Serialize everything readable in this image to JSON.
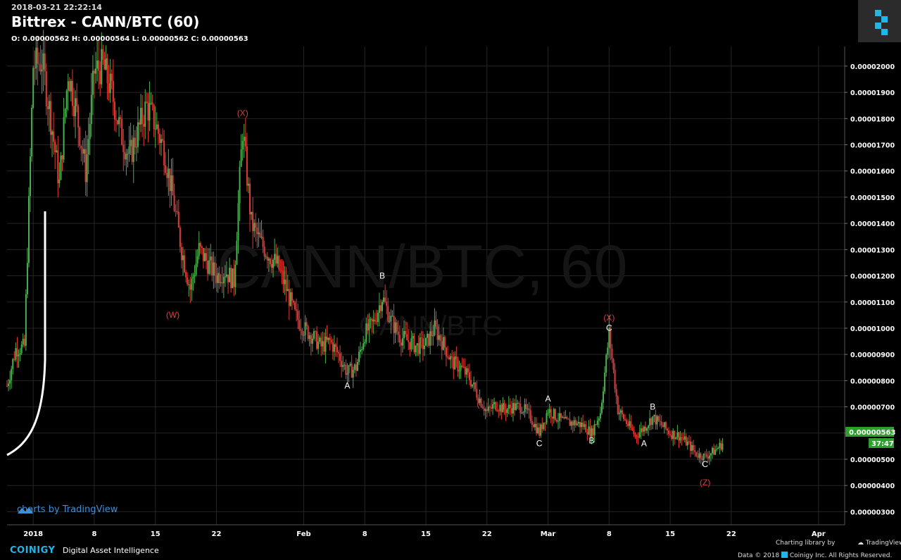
{
  "header": {
    "timestamp": "2018-03-21 22:22:14",
    "title": "Bittrex - CANN/BTC (60)",
    "ohlc": "O: 0.00000562 H: 0.00000564 L: 0.00000562 C: 0.00000563"
  },
  "watermark": {
    "main": "CANN/BTC, 60",
    "sub": "CANN/BTC"
  },
  "tradingview_credit": "charts by TradingView",
  "footer": {
    "brand": "COINIGY",
    "tagline": "Digital Asset Intelligence",
    "charting_library": "Charting library by",
    "tradingview": "TradingView",
    "copyright": "Data © 2018",
    "copyright_rest": "Coinigy Inc. All Rights Reserved."
  },
  "price_badge": {
    "value": "0.00000563",
    "countdown": "37:47"
  },
  "colors": {
    "up": "#4caf50",
    "down": "#e53935",
    "badge": "#2e9e2e",
    "wave_red": "#d9413a",
    "wave_white": "#ffffff",
    "grid": "#262626"
  },
  "chart_data": {
    "type": "candlestick",
    "title": "Bittrex - CANN/BTC (60)",
    "x_axis_labels": [
      "2018",
      "8",
      "15",
      "22",
      "Feb",
      "8",
      "15",
      "22",
      "Mar",
      "8",
      "15",
      "22",
      "Apr"
    ],
    "x_axis_dates": [
      "2018-01-01",
      "2018-01-08",
      "2018-01-15",
      "2018-01-22",
      "2018-02-01",
      "2018-02-08",
      "2018-02-15",
      "2018-02-22",
      "2018-03-01",
      "2018-03-08",
      "2018-03-15",
      "2018-03-22",
      "2018-04-01"
    ],
    "y_axis_labels": [
      "0.00002000",
      "0.00001900",
      "0.00001800",
      "0.00001700",
      "0.00001600",
      "0.00001500",
      "0.00001400",
      "0.00001300",
      "0.00001200",
      "0.00001100",
      "0.00001000",
      "0.00000900",
      "0.00000800",
      "0.00000700",
      "0.00000600",
      "0.00000500",
      "0.00000400",
      "0.00000300"
    ],
    "y_axis_values": [
      2e-05,
      1.9e-05,
      1.8e-05,
      1.7e-05,
      1.6e-05,
      1.5e-05,
      1.4e-05,
      1.3e-05,
      1.2e-05,
      1.1e-05,
      1e-05,
      9e-06,
      8e-06,
      7e-06,
      6e-06,
      5e-06,
      4e-06,
      3e-06
    ],
    "xlim": [
      "2017-12-29",
      "2018-04-04"
    ],
    "ylim": [
      2.5e-06,
      2.075e-05
    ],
    "price_path": [
      {
        "date": "2017-12-29",
        "price": 7.8e-06
      },
      {
        "date": "2017-12-30",
        "price": 9.2e-06
      },
      {
        "date": "2017-12-31",
        "price": 9.3e-06
      },
      {
        "date": "2018-01-01",
        "price": 2e-05
      },
      {
        "date": "2018-01-02",
        "price": 2.02e-05
      },
      {
        "date": "2018-01-03",
        "price": 1.8e-05
      },
      {
        "date": "2018-01-04",
        "price": 1.55e-05
      },
      {
        "date": "2018-01-05",
        "price": 1.98e-05
      },
      {
        "date": "2018-01-06",
        "price": 1.82e-05
      },
      {
        "date": "2018-01-07",
        "price": 1.6e-05
      },
      {
        "date": "2018-01-08",
        "price": 1.98e-05
      },
      {
        "date": "2018-01-09",
        "price": 2e-05
      },
      {
        "date": "2018-01-10",
        "price": 1.9e-05
      },
      {
        "date": "2018-01-11",
        "price": 1.75e-05
      },
      {
        "date": "2018-01-12",
        "price": 1.65e-05
      },
      {
        "date": "2018-01-13",
        "price": 1.75e-05
      },
      {
        "date": "2018-01-14",
        "price": 1.85e-05
      },
      {
        "date": "2018-01-15",
        "price": 1.78e-05
      },
      {
        "date": "2018-01-16",
        "price": 1.68e-05
      },
      {
        "date": "2018-01-17",
        "price": 1.5e-05
      },
      {
        "date": "2018-01-18",
        "price": 1.3e-05
      },
      {
        "date": "2018-01-19",
        "price": 1.15e-05
      },
      {
        "date": "2018-01-20",
        "price": 1.3e-05
      },
      {
        "date": "2018-01-21",
        "price": 1.25e-05
      },
      {
        "date": "2018-01-22",
        "price": 1.2e-05
      },
      {
        "date": "2018-01-23",
        "price": 1.22e-05
      },
      {
        "date": "2018-01-24",
        "price": 1.18e-05
      },
      {
        "date": "2018-01-25",
        "price": 1.76e-05
      },
      {
        "date": "2018-01-26",
        "price": 1.4e-05
      },
      {
        "date": "2018-01-27",
        "price": 1.33e-05
      },
      {
        "date": "2018-01-28",
        "price": 1.28e-05
      },
      {
        "date": "2018-01-29",
        "price": 1.24e-05
      },
      {
        "date": "2018-01-30",
        "price": 1.15e-05
      },
      {
        "date": "2018-01-31",
        "price": 1.05e-05
      },
      {
        "date": "2018-02-01",
        "price": 1e-05
      },
      {
        "date": "2018-02-02",
        "price": 9.7e-06
      },
      {
        "date": "2018-02-03",
        "price": 9.3e-06
      },
      {
        "date": "2018-02-04",
        "price": 9.5e-06
      },
      {
        "date": "2018-02-05",
        "price": 9e-06
      },
      {
        "date": "2018-02-06",
        "price": 8.3e-06
      },
      {
        "date": "2018-02-07",
        "price": 8.5e-06
      },
      {
        "date": "2018-02-08",
        "price": 9.8e-06
      },
      {
        "date": "2018-02-09",
        "price": 1.02e-05
      },
      {
        "date": "2018-02-10",
        "price": 1.12e-05
      },
      {
        "date": "2018-02-11",
        "price": 1.03e-05
      },
      {
        "date": "2018-02-12",
        "price": 9.7e-06
      },
      {
        "date": "2018-02-13",
        "price": 9.5e-06
      },
      {
        "date": "2018-02-14",
        "price": 9.3e-06
      },
      {
        "date": "2018-02-15",
        "price": 9.4e-06
      },
      {
        "date": "2018-02-16",
        "price": 1e-05
      },
      {
        "date": "2018-02-17",
        "price": 9.4e-06
      },
      {
        "date": "2018-02-18",
        "price": 8.7e-06
      },
      {
        "date": "2018-02-19",
        "price": 8.5e-06
      },
      {
        "date": "2018-02-20",
        "price": 8.1e-06
      },
      {
        "date": "2018-02-21",
        "price": 7.4e-06
      },
      {
        "date": "2018-02-22",
        "price": 6.8e-06
      },
      {
        "date": "2018-02-23",
        "price": 7.1e-06
      },
      {
        "date": "2018-02-24",
        "price": 6.9e-06
      },
      {
        "date": "2018-02-25",
        "price": 7e-06
      },
      {
        "date": "2018-02-26",
        "price": 7e-06
      },
      {
        "date": "2018-02-27",
        "price": 6.6e-06
      },
      {
        "date": "2018-02-28",
        "price": 6e-06
      },
      {
        "date": "2018-03-01",
        "price": 6.9e-06
      },
      {
        "date": "2018-03-02",
        "price": 6.6e-06
      },
      {
        "date": "2018-03-03",
        "price": 6.4e-06
      },
      {
        "date": "2018-03-04",
        "price": 6.4e-06
      },
      {
        "date": "2018-03-05",
        "price": 6.3e-06
      },
      {
        "date": "2018-03-06",
        "price": 6e-06
      },
      {
        "date": "2018-03-07",
        "price": 6.8e-06
      },
      {
        "date": "2018-03-08",
        "price": 9.8e-06
      },
      {
        "date": "2018-03-09",
        "price": 6.9e-06
      },
      {
        "date": "2018-03-10",
        "price": 6.4e-06
      },
      {
        "date": "2018-03-11",
        "price": 5.9e-06
      },
      {
        "date": "2018-03-12",
        "price": 6.2e-06
      },
      {
        "date": "2018-03-13",
        "price": 6.6e-06
      },
      {
        "date": "2018-03-14",
        "price": 6.3e-06
      },
      {
        "date": "2018-03-15",
        "price": 6e-06
      },
      {
        "date": "2018-03-16",
        "price": 5.9e-06
      },
      {
        "date": "2018-03-17",
        "price": 5.6e-06
      },
      {
        "date": "2018-03-18",
        "price": 5.2e-06
      },
      {
        "date": "2018-03-19",
        "price": 5.1e-06
      },
      {
        "date": "2018-03-20",
        "price": 5.3e-06
      },
      {
        "date": "2018-03-21",
        "price": 5.6e-06
      }
    ],
    "wave_labels": [
      {
        "text": "(W)",
        "date": "2018-01-17",
        "price": 1.04e-05,
        "color": "red"
      },
      {
        "text": "(X)",
        "date": "2018-01-25",
        "price": 1.81e-05,
        "color": "red"
      },
      {
        "text": "A",
        "date": "2018-02-06",
        "price": 7.7e-06,
        "color": "white"
      },
      {
        "text": "B",
        "date": "2018-02-10",
        "price": 1.19e-05,
        "color": "white"
      },
      {
        "text": "(",
        "date": "2018-02-21",
        "price": 7e-06,
        "color": "red"
      },
      {
        "text": "A",
        "date": "2018-03-01",
        "price": 7.2e-06,
        "color": "white"
      },
      {
        "text": "C",
        "date": "2018-02-28",
        "price": 5.5e-06,
        "color": "white"
      },
      {
        "text": "B",
        "date": "2018-03-06",
        "price": 5.6e-06,
        "color": "white"
      },
      {
        "text": "(X)",
        "date": "2018-03-08",
        "price": 1.03e-05,
        "color": "red"
      },
      {
        "text": "C",
        "date": "2018-03-08",
        "price": 9.9e-06,
        "color": "white"
      },
      {
        "text": "A",
        "date": "2018-03-12",
        "price": 5.5e-06,
        "color": "white"
      },
      {
        "text": "B",
        "date": "2018-03-13",
        "price": 6.9e-06,
        "color": "white"
      },
      {
        "text": "C",
        "date": "2018-03-19",
        "price": 4.7e-06,
        "color": "white"
      },
      {
        "text": "(Z)",
        "date": "2018-03-19",
        "price": 4e-06,
        "color": "red"
      }
    ],
    "last_price": 5.63e-06,
    "grid": true
  }
}
